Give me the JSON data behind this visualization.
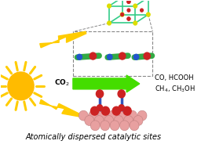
{
  "bg_color": "#ffffff",
  "title_text": "Atomically dispersed catalytic sites",
  "title_fontsize": 7.0,
  "co2_text": "CO$_2$",
  "products_line1": "CO, HCOOH",
  "products_line2": "CH$_4$, CH$_3$OH",
  "arrow_color": "#44dd00",
  "sun_color_outer": "#ffcc00",
  "sun_color_inner": "#ffbb00",
  "lightning_color": "#ffcc00",
  "cube_color": "#33cc88",
  "cube_node_color_yellow": "#dddd00",
  "cube_node_color_red": "#cc2222",
  "rod_color": "#33aa44",
  "rod_atom_red": "#cc2222",
  "rod_atom_blue": "#2255cc",
  "slab_pink": "#e8a0a0",
  "slab_red": "#cc2222",
  "slab_blue": "#3355bb"
}
